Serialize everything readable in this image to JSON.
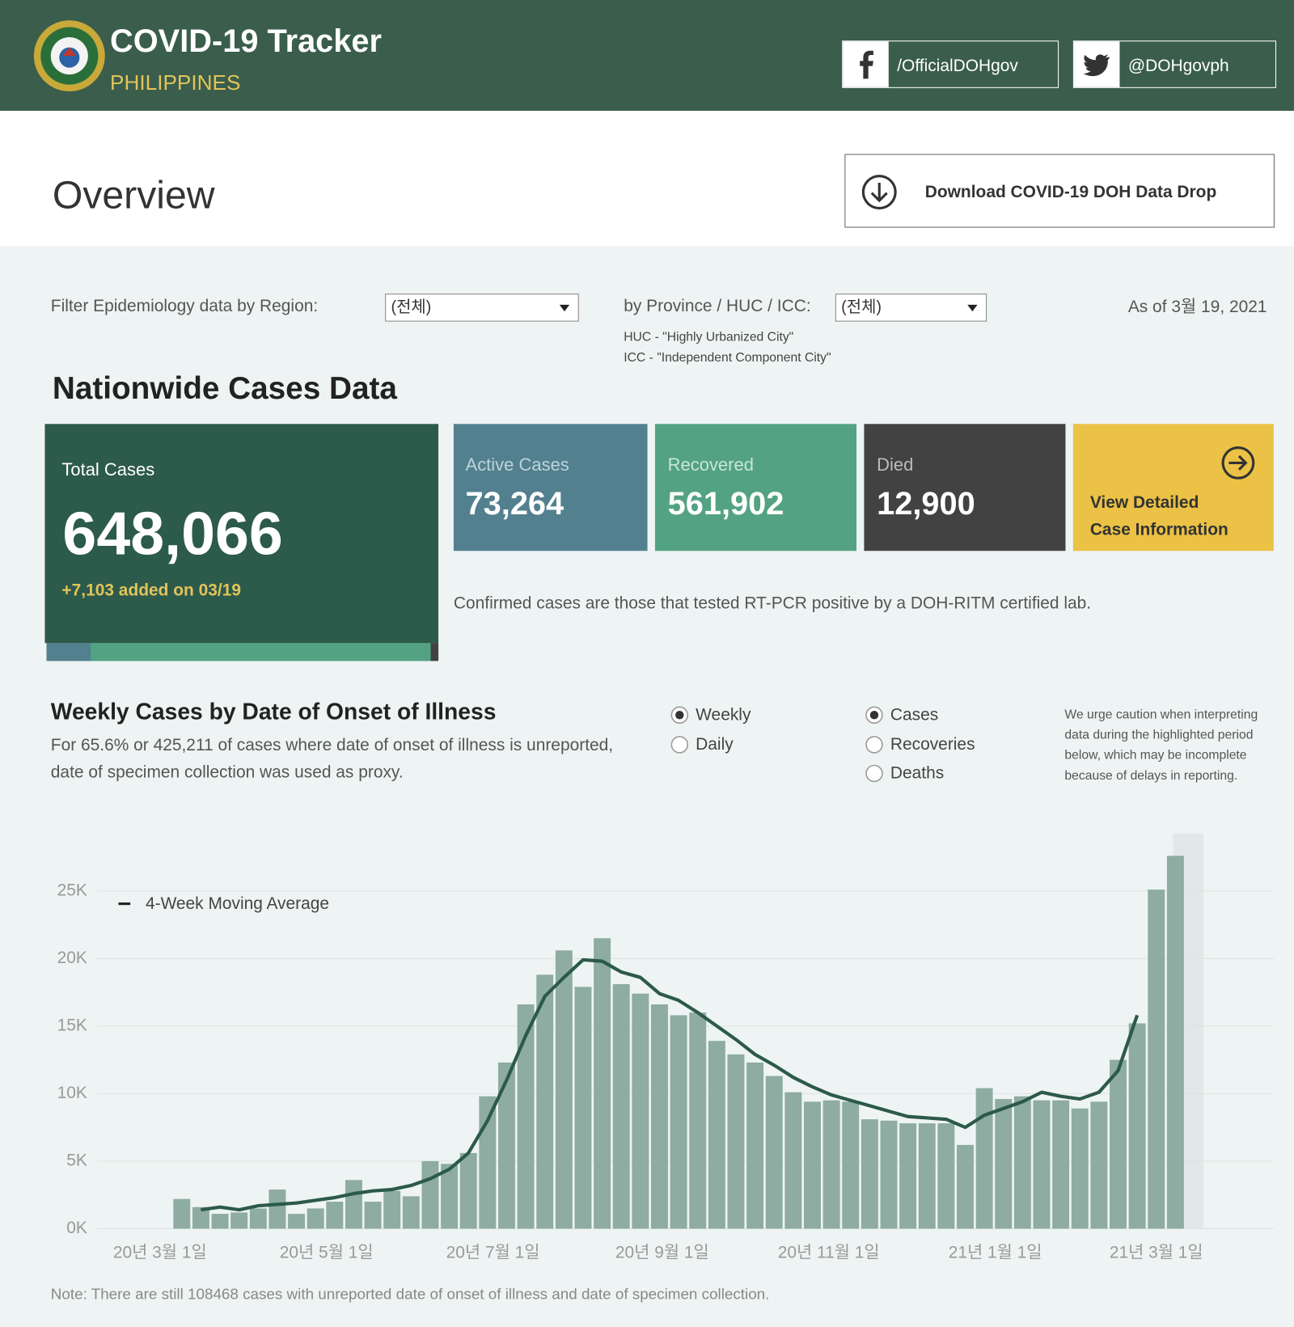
{
  "header": {
    "title": "COVID-19 Tracker",
    "subtitle": "PHILIPPINES",
    "facebook": "/OfficialDOHgov",
    "twitter": "@DOHgovph"
  },
  "overview": {
    "title": "Overview",
    "download": "Download COVID-19 DOH Data Drop"
  },
  "filters": {
    "region_label": "Filter Epidemiology data by Region:",
    "region_value": "(전체)",
    "province_label": "by Province / HUC / ICC:",
    "province_value": "(전체)",
    "huc_note": "HUC - \"Highly Urbanized City\"",
    "icc_note": "ICC - \"Independent Component City\"",
    "as_of": "As of 3월 19, 2021"
  },
  "nationwide": {
    "title": "Nationwide Cases Data",
    "total": {
      "label": "Total Cases",
      "value": 648066,
      "value_label": "648,066",
      "added": "+7,103 added on 03/19"
    },
    "active": {
      "label": "Active Cases",
      "value": 73264,
      "value_label": "73,264",
      "color": "#53808f"
    },
    "recovered": {
      "label": "Recovered",
      "value": 561902,
      "value_label": "561,902",
      "color": "#53a284"
    },
    "died": {
      "label": "Died",
      "value": 12900,
      "value_label": "12,900",
      "color": "#424242"
    },
    "view_detail": "View Detailed Case Information",
    "note": "Confirmed cases are those that tested RT-PCR positive by a DOH-RITM certified lab."
  },
  "weekly": {
    "title": "Weekly Cases by Date of Onset of Illness",
    "subtitle": "For 65.6% or 425,211 of cases where date of onset of illness is unreported, date of specimen collection was used as proxy.",
    "period_options": [
      {
        "label": "Weekly",
        "selected": true
      },
      {
        "label": "Daily",
        "selected": false
      }
    ],
    "metric_options": [
      {
        "label": "Cases",
        "selected": true
      },
      {
        "label": "Recoveries",
        "selected": false
      },
      {
        "label": "Deaths",
        "selected": false
      }
    ],
    "caution": "We urge caution when interpreting data during the highlighted period below, which may be incomplete because of delays in reporting.",
    "footnote": "Note: There are still 108468 cases with unreported date of onset of illness and date of specimen collection."
  },
  "chart_data": {
    "type": "bar",
    "x": [
      "2020-03-09",
      "2020-03-16",
      "2020-03-23",
      "2020-03-30",
      "2020-04-06",
      "2020-04-13",
      "2020-04-20",
      "2020-04-27",
      "2020-05-04",
      "2020-05-11",
      "2020-05-18",
      "2020-05-25",
      "2020-06-01",
      "2020-06-08",
      "2020-06-15",
      "2020-06-22",
      "2020-06-29",
      "2020-07-06",
      "2020-07-13",
      "2020-07-20",
      "2020-07-27",
      "2020-08-03",
      "2020-08-10",
      "2020-08-17",
      "2020-08-24",
      "2020-08-31",
      "2020-09-07",
      "2020-09-14",
      "2020-09-21",
      "2020-09-28",
      "2020-10-05",
      "2020-10-12",
      "2020-10-19",
      "2020-10-26",
      "2020-11-02",
      "2020-11-09",
      "2020-11-16",
      "2020-11-23",
      "2020-11-30",
      "2020-12-07",
      "2020-12-14",
      "2020-12-21",
      "2020-12-28",
      "2021-01-04",
      "2021-01-11",
      "2021-01-18",
      "2021-01-25",
      "2021-02-01",
      "2021-02-08",
      "2021-02-15",
      "2021-02-22",
      "2021-03-01",
      "2021-03-08"
    ],
    "series": [
      {
        "color": "#8eaca1",
        "values": [
          2200,
          1600,
          1100,
          1200,
          1500,
          2900,
          1100,
          1500,
          2000,
          3600,
          2000,
          2800,
          2400,
          5000,
          4800,
          5600,
          9800,
          12300,
          16600,
          18800,
          20600,
          17900,
          21500,
          18100,
          17400,
          16600,
          15800,
          16000,
          13900,
          12900,
          12300,
          11300,
          10100,
          9400,
          9500,
          9400,
          8100,
          8000,
          7800,
          7800,
          7800,
          6200,
          10400,
          9600,
          9800,
          9500,
          9500,
          8900,
          9400,
          12500,
          15200,
          25100,
          27600
        ]
      },
      {
        "name": "4-Week Moving Average",
        "type": "line",
        "color": "#2c5a4a",
        "values": [
          null,
          1400,
          1600,
          1400,
          1700,
          1800,
          1900,
          2100,
          2300,
          2600,
          2800,
          2900,
          3200,
          3700,
          4400,
          5600,
          8000,
          11000,
          14300,
          17200,
          18600,
          19900,
          19800,
          19000,
          18600,
          17400,
          16900,
          16000,
          15000,
          14000,
          12900,
          12100,
          11200,
          10500,
          9900,
          9500,
          9100,
          8700,
          8300,
          8200,
          8100,
          7500,
          8400,
          8900,
          9400,
          10100,
          9800,
          9600,
          10100,
          11700,
          15800,
          null,
          null
        ]
      }
    ],
    "xlim": [
      "2020-01-21",
      "2021-04-13"
    ],
    "xticks": [
      {
        "value": "2020-03-01",
        "label": "20년 3월 1일"
      },
      {
        "value": "2020-05-01",
        "label": "20년 5월 1일"
      },
      {
        "value": "2020-07-01",
        "label": "20년 7월 1일"
      },
      {
        "value": "2020-09-01",
        "label": "20년 9월 1일"
      },
      {
        "value": "2020-11-01",
        "label": "20년 11월 1일"
      },
      {
        "value": "2021-01-01",
        "label": "21년 1월 1일"
      },
      {
        "value": "2021-03-01",
        "label": "21년 3월 1일"
      }
    ],
    "ylim": [
      0,
      29000
    ],
    "yticks": [
      {
        "value": 0,
        "label": "0K"
      },
      {
        "value": 5000,
        "label": "5K"
      },
      {
        "value": 10000,
        "label": "10K"
      },
      {
        "value": 15000,
        "label": "15K"
      },
      {
        "value": 20000,
        "label": "20K"
      },
      {
        "value": 25000,
        "label": "25K"
      }
    ],
    "grid": true
  }
}
